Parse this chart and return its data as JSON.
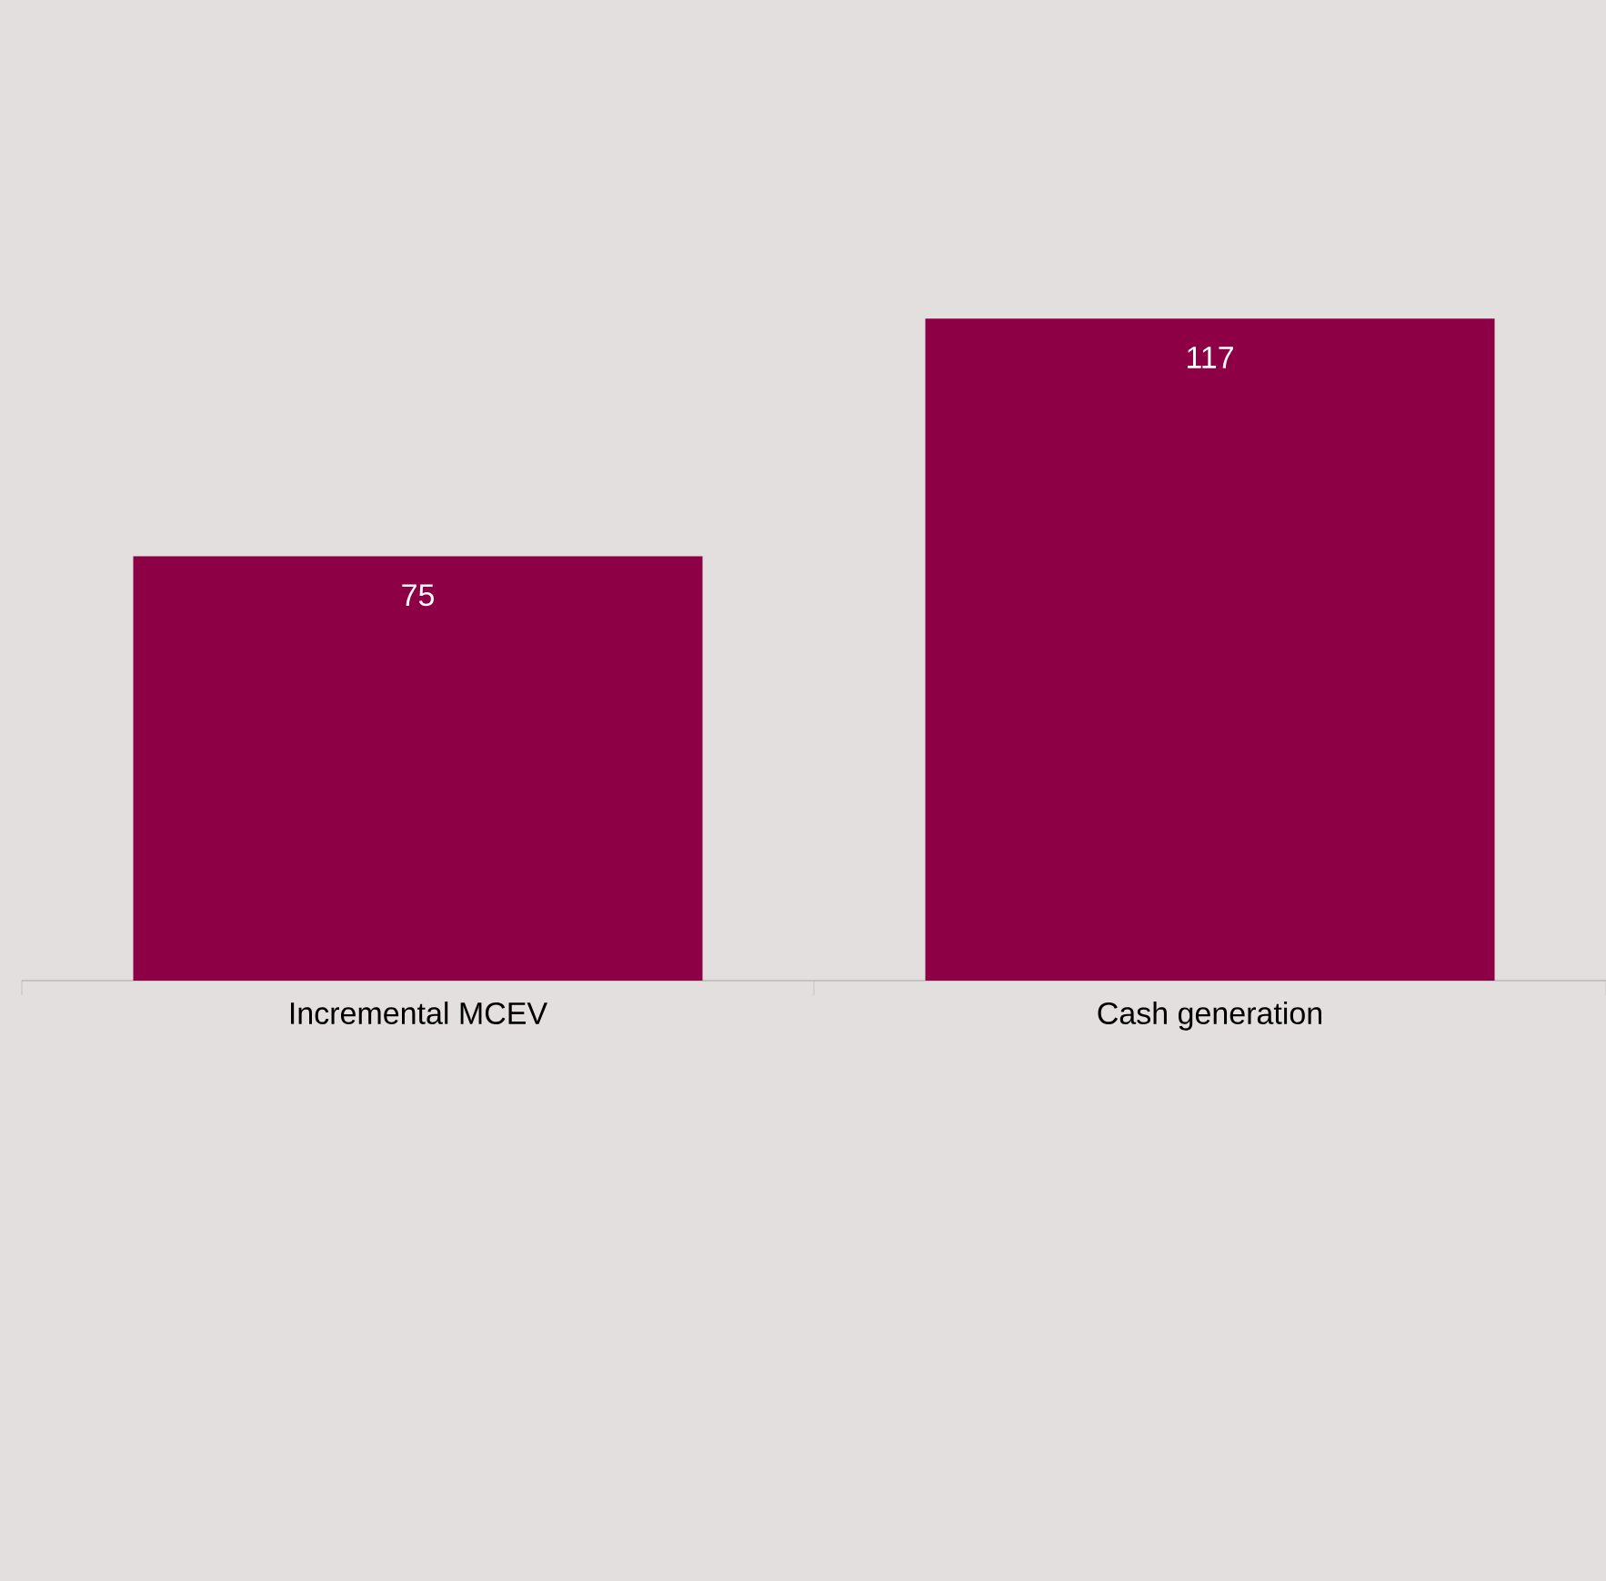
{
  "chart_data": {
    "type": "bar",
    "categories": [
      "Incremental MCEV",
      "Cash generation"
    ],
    "values": [
      75,
      117
    ],
    "color": "#8e0046",
    "data_labels": true
  }
}
